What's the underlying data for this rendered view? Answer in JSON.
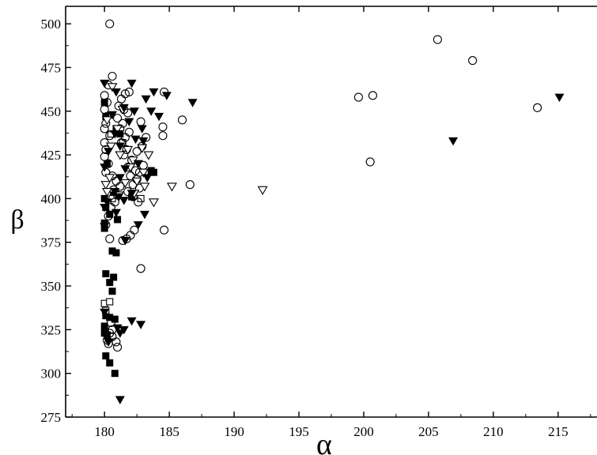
{
  "chart_data": {
    "type": "scatter",
    "title": "",
    "xlabel": "α",
    "ylabel": "β",
    "xlim": [
      177,
      218
    ],
    "ylim": [
      275,
      510
    ],
    "xticks": [
      180,
      185,
      190,
      195,
      200,
      205,
      210,
      215
    ],
    "yticks": [
      275,
      300,
      325,
      350,
      375,
      400,
      425,
      450,
      475,
      500
    ],
    "x_tick_labels": [
      "180",
      "185",
      "190",
      "195",
      "200",
      "205",
      "210",
      "215"
    ],
    "y_tick_labels": [
      "275",
      "300",
      "325",
      "350",
      "375",
      "400",
      "425",
      "450",
      "475",
      "500"
    ],
    "grid": false,
    "legend": "none",
    "series": [
      {
        "marker": "filled-square",
        "color": "#000000",
        "points": [
          [
            180.0,
            455
          ],
          [
            180.1,
            447
          ],
          [
            180.2,
            420
          ],
          [
            180.0,
            400
          ],
          [
            180.1,
            395
          ],
          [
            180.0,
            386
          ],
          [
            180.0,
            383
          ],
          [
            180.6,
            370
          ],
          [
            180.9,
            369
          ],
          [
            180.1,
            357
          ],
          [
            180.4,
            352
          ],
          [
            180.7,
            355
          ],
          [
            180.6,
            347
          ],
          [
            180.1,
            333
          ],
          [
            180.4,
            332
          ],
          [
            180.8,
            331
          ],
          [
            180.0,
            327
          ],
          [
            180.0,
            323
          ],
          [
            180.2,
            322
          ],
          [
            180.1,
            310
          ],
          [
            180.4,
            306
          ],
          [
            180.8,
            300
          ],
          [
            180.4,
            391
          ],
          [
            183.6,
            416
          ],
          [
            183.8,
            415
          ],
          [
            182.1,
            401
          ],
          [
            181.0,
            388
          ],
          [
            180.7,
            402
          ],
          [
            180.9,
            440
          ],
          [
            181.2,
            437
          ]
        ]
      },
      {
        "marker": "open-square",
        "color": "#000000",
        "points": [
          [
            180.0,
            340
          ],
          [
            180.4,
            341
          ],
          [
            180.1,
            336
          ],
          [
            180.6,
            400
          ],
          [
            182.8,
            400
          ],
          [
            181.4,
            432
          ],
          [
            180.5,
            437
          ]
        ]
      },
      {
        "marker": "open-circle",
        "color": "#000000",
        "points": [
          [
            180.4,
            500
          ],
          [
            180.6,
            470
          ],
          [
            180.3,
            465
          ],
          [
            180.0,
            459
          ],
          [
            180.2,
            455
          ],
          [
            180.0,
            451
          ],
          [
            180.2,
            447
          ],
          [
            180.1,
            443
          ],
          [
            180.0,
            440
          ],
          [
            180.4,
            436
          ],
          [
            180.0,
            432
          ],
          [
            180.1,
            428
          ],
          [
            180.0,
            424
          ],
          [
            180.3,
            420
          ],
          [
            180.1,
            415
          ],
          [
            180.6,
            413
          ],
          [
            180.9,
            410
          ],
          [
            181.2,
            407
          ],
          [
            180.7,
            405
          ],
          [
            181.0,
            402
          ],
          [
            180.8,
            398
          ],
          [
            181.6,
            460
          ],
          [
            181.9,
            461
          ],
          [
            181.3,
            457
          ],
          [
            181.1,
            453
          ],
          [
            181.5,
            451
          ],
          [
            181.8,
            449
          ],
          [
            181.0,
            446
          ],
          [
            181.4,
            443
          ],
          [
            181.2,
            440
          ],
          [
            181.9,
            438
          ],
          [
            181.6,
            435
          ],
          [
            181.3,
            432
          ],
          [
            181.7,
            428
          ],
          [
            181.5,
            425
          ],
          [
            182.1,
            422
          ],
          [
            181.8,
            418
          ],
          [
            182.4,
            416
          ],
          [
            182.0,
            413
          ],
          [
            182.5,
            411
          ],
          [
            182.2,
            408
          ],
          [
            182.7,
            406
          ],
          [
            181.8,
            404
          ],
          [
            182.2,
            401
          ],
          [
            182.6,
            398
          ],
          [
            180.5,
            395
          ],
          [
            180.3,
            390
          ],
          [
            180.1,
            385
          ],
          [
            181.4,
            376
          ],
          [
            180.4,
            377
          ],
          [
            181.7,
            377
          ],
          [
            182.0,
            379
          ],
          [
            182.3,
            382
          ],
          [
            182.8,
            360
          ],
          [
            184.6,
            461
          ],
          [
            184.5,
            441
          ],
          [
            184.5,
            436
          ],
          [
            186.0,
            445
          ],
          [
            184.6,
            382
          ],
          [
            186.6,
            408
          ],
          [
            182.8,
            444
          ],
          [
            183.2,
            435
          ],
          [
            182.9,
            430
          ],
          [
            182.5,
            427
          ],
          [
            183.0,
            419
          ],
          [
            182.7,
            415
          ],
          [
            180.5,
            329
          ],
          [
            180.6,
            325
          ],
          [
            180.4,
            323
          ],
          [
            180.2,
            319
          ],
          [
            180.6,
            321
          ],
          [
            180.9,
            318
          ],
          [
            181.0,
            315
          ],
          [
            180.3,
            317
          ],
          [
            199.6,
            458
          ],
          [
            200.7,
            459
          ],
          [
            200.5,
            421
          ],
          [
            205.7,
            491
          ],
          [
            208.4,
            479
          ],
          [
            213.4,
            452
          ]
        ]
      },
      {
        "marker": "open-triangle-down",
        "color": "#000000",
        "points": [
          [
            180.6,
            464
          ],
          [
            181.4,
            451
          ],
          [
            180.2,
            445
          ],
          [
            181.0,
            440
          ],
          [
            180.5,
            430
          ],
          [
            181.8,
            428
          ],
          [
            181.2,
            425
          ],
          [
            182.2,
            422
          ],
          [
            182.9,
            429
          ],
          [
            183.4,
            425
          ],
          [
            182.0,
            418
          ],
          [
            183.0,
            415
          ],
          [
            180.4,
            412
          ],
          [
            180.1,
            408
          ],
          [
            181.6,
            409
          ],
          [
            182.5,
            410
          ],
          [
            183.1,
            407
          ],
          [
            180.2,
            404
          ],
          [
            181.1,
            402
          ],
          [
            182.3,
            403
          ],
          [
            183.8,
            398
          ],
          [
            185.2,
            407
          ],
          [
            192.2,
            405
          ]
        ]
      },
      {
        "marker": "filled-triangle-down",
        "color": "#000000",
        "points": [
          [
            180.0,
            466
          ],
          [
            182.1,
            466
          ],
          [
            180.9,
            461
          ],
          [
            183.8,
            461
          ],
          [
            184.8,
            459
          ],
          [
            183.2,
            457
          ],
          [
            186.8,
            455
          ],
          [
            181.5,
            452
          ],
          [
            182.3,
            450
          ],
          [
            183.6,
            450
          ],
          [
            180.6,
            448
          ],
          [
            184.2,
            447
          ],
          [
            181.9,
            444
          ],
          [
            182.9,
            440
          ],
          [
            180.8,
            437
          ],
          [
            182.4,
            434
          ],
          [
            181.2,
            430
          ],
          [
            183.0,
            433
          ],
          [
            180.3,
            427
          ],
          [
            182.6,
            420
          ],
          [
            180.0,
            418
          ],
          [
            181.6,
            417
          ],
          [
            181.2,
            412
          ],
          [
            183.3,
            412
          ],
          [
            180.8,
            404
          ],
          [
            182.1,
            403
          ],
          [
            181.1,
            401
          ],
          [
            180.2,
            398
          ],
          [
            181.5,
            399
          ],
          [
            180.0,
            395
          ],
          [
            180.9,
            392
          ],
          [
            183.1,
            391
          ],
          [
            182.6,
            385
          ],
          [
            180.0,
            384
          ],
          [
            181.6,
            376
          ],
          [
            182.1,
            330
          ],
          [
            182.8,
            328
          ],
          [
            180.0,
            335
          ],
          [
            181.0,
            326
          ],
          [
            181.5,
            325
          ],
          [
            181.2,
            323
          ],
          [
            180.3,
            318
          ],
          [
            181.2,
            285
          ],
          [
            206.9,
            433
          ],
          [
            215.1,
            458
          ]
        ]
      }
    ]
  }
}
